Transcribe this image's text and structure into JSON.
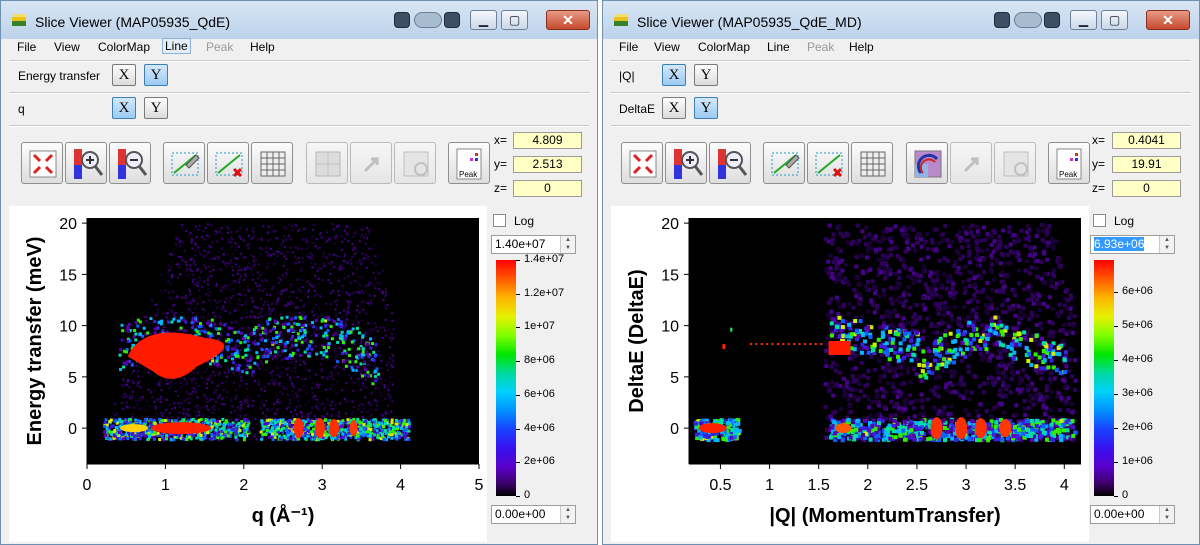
{
  "windows": [
    {
      "title": "Slice Viewer (MAP05935_QdE)",
      "menu": [
        "File",
        "View",
        "ColorMap",
        "Line",
        "Peak",
        "Help"
      ],
      "dims": [
        {
          "label": "Energy transfer",
          "x": "X",
          "y": "Y",
          "active": "Y"
        },
        {
          "label": "q",
          "x": "X",
          "y": "Y",
          "active": "X"
        }
      ],
      "coords": {
        "x_label": "x=",
        "x": "4.809",
        "y_label": "y=",
        "y": "2.513",
        "z_label": "z=",
        "z": "0"
      },
      "log_label": "Log",
      "cmax": "1.40e+07",
      "cmin": "0.00e+00",
      "colorbar_ticks": [
        "1.4e+07",
        "1.2e+07",
        "1e+07",
        "8e+06",
        "6e+06",
        "4e+06",
        "2e+06",
        "0"
      ],
      "peak_tool_label": "Peak",
      "chart_data": {
        "type": "heatmap",
        "xlabel": "q (Å⁻¹)",
        "ylabel": "Energy transfer (meV)",
        "xlim": [
          0,
          5
        ],
        "ylim": [
          -3.5,
          20.5
        ],
        "xticks": [
          "0",
          "1",
          "2",
          "3",
          "4",
          "5"
        ],
        "yticks": [
          "20",
          "15",
          "10",
          "5",
          "0"
        ],
        "colorbar_range": [
          0,
          14000000
        ],
        "colorbar_ticks": [
          "1.4e+07",
          "1.2e+07",
          "1e+07",
          "8e+06",
          "6e+06",
          "4e+06",
          "2e+06",
          "0"
        ]
      }
    },
    {
      "title": "Slice Viewer (MAP05935_QdE_MD)",
      "menu": [
        "File",
        "View",
        "ColorMap",
        "Line",
        "Peak",
        "Help"
      ],
      "dims": [
        {
          "label": "|Q|",
          "x": "X",
          "y": "Y",
          "active": "X"
        },
        {
          "label": "DeltaE",
          "x": "X",
          "y": "Y",
          "active": "Y"
        }
      ],
      "coords": {
        "x_label": "x=",
        "x": "0.4041",
        "y_label": "y=",
        "y": "19.91",
        "z_label": "z=",
        "z": "0"
      },
      "log_label": "Log",
      "cmax": "6.93e+06",
      "cmin": "0.00e+00",
      "colorbar_ticks": [
        "6e+06",
        "5e+06",
        "4e+06",
        "3e+06",
        "2e+06",
        "1e+06",
        "0"
      ],
      "peak_tool_label": "Peak",
      "chart_data": {
        "type": "heatmap",
        "xlabel": "|Q| (MomentumTransfer)",
        "ylabel": "DeltaE (DeltaE)",
        "xlim": [
          0.18,
          4.17
        ],
        "ylim": [
          -3.5,
          20.5
        ],
        "xticks": [
          "0.5",
          "1",
          "1.5",
          "2",
          "2.5",
          "3",
          "3.5",
          "4"
        ],
        "yticks": [
          "20",
          "15",
          "10",
          "5",
          "0"
        ],
        "colorbar_range": [
          0,
          6930000
        ],
        "colorbar_ticks": [
          "6e+06",
          "5e+06",
          "4e+06",
          "3e+06",
          "2e+06",
          "1e+06",
          "0"
        ]
      }
    }
  ],
  "icons": [
    "app-icon",
    "minimize-icon",
    "maximize-icon",
    "close-icon",
    "zoom-fit-icon",
    "zoom-in-icon",
    "zoom-out-icon",
    "line-tool-icon",
    "clear-line-icon",
    "grid-icon",
    "rebin-icon",
    "pan-icon",
    "refresh-icon",
    "peak-icon"
  ]
}
